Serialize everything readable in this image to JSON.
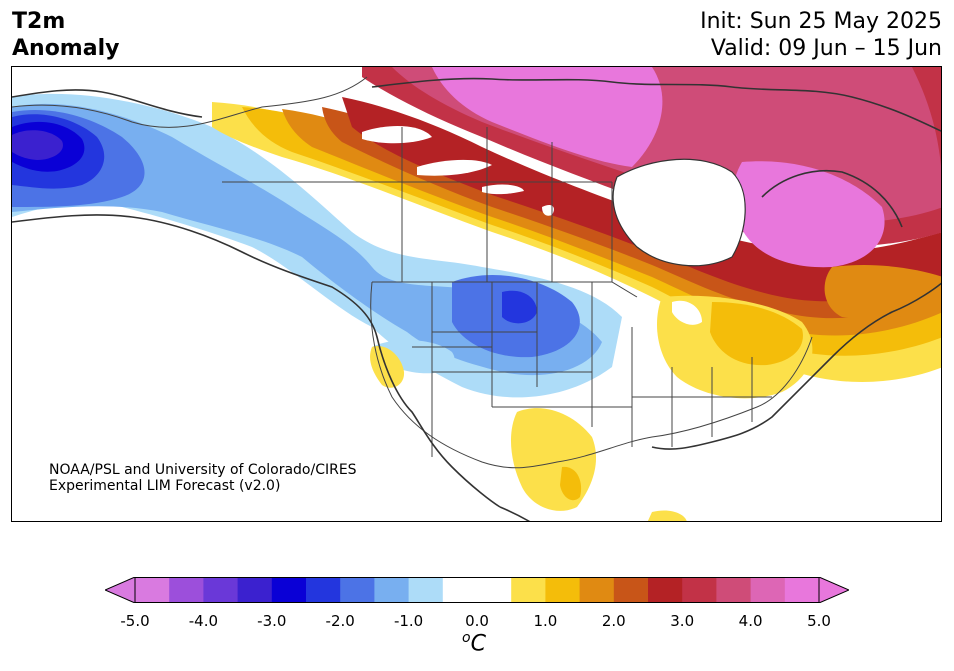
{
  "title": {
    "line1": "T2m",
    "line2": "Anomaly"
  },
  "dates": {
    "init": "Init: Sun 25 May 2025",
    "valid": "Valid: 09 Jun – 15 Jun"
  },
  "credit": {
    "line1": "NOAA/PSL and University of Colorado/CIRES",
    "line2": "Experimental LIM Forecast (v2.0)"
  },
  "colorbar": {
    "ticks": [
      "-5.0",
      "-4.0",
      "-3.0",
      "-2.0",
      "-1.0",
      "0.0",
      "1.0",
      "2.0",
      "3.0",
      "4.0",
      "5.0"
    ],
    "unit": "C",
    "unit_super": "o",
    "colors": [
      "#d97ae0",
      "#9c4fdb",
      "#6a38d8",
      "#3b21cf",
      "#0a00d6",
      "#2336de",
      "#4c73e6",
      "#78aff0",
      "#addcf8",
      "#ffffff",
      "#ffffff",
      "#fce04a",
      "#f4bd0a",
      "#e08a12",
      "#c85518",
      "#b42225",
      "#c23247",
      "#cf4c78",
      "#dd66b5",
      "#e877dc"
    ],
    "over_color": "#e877dc",
    "under_color": "#d97ae0"
  }
}
